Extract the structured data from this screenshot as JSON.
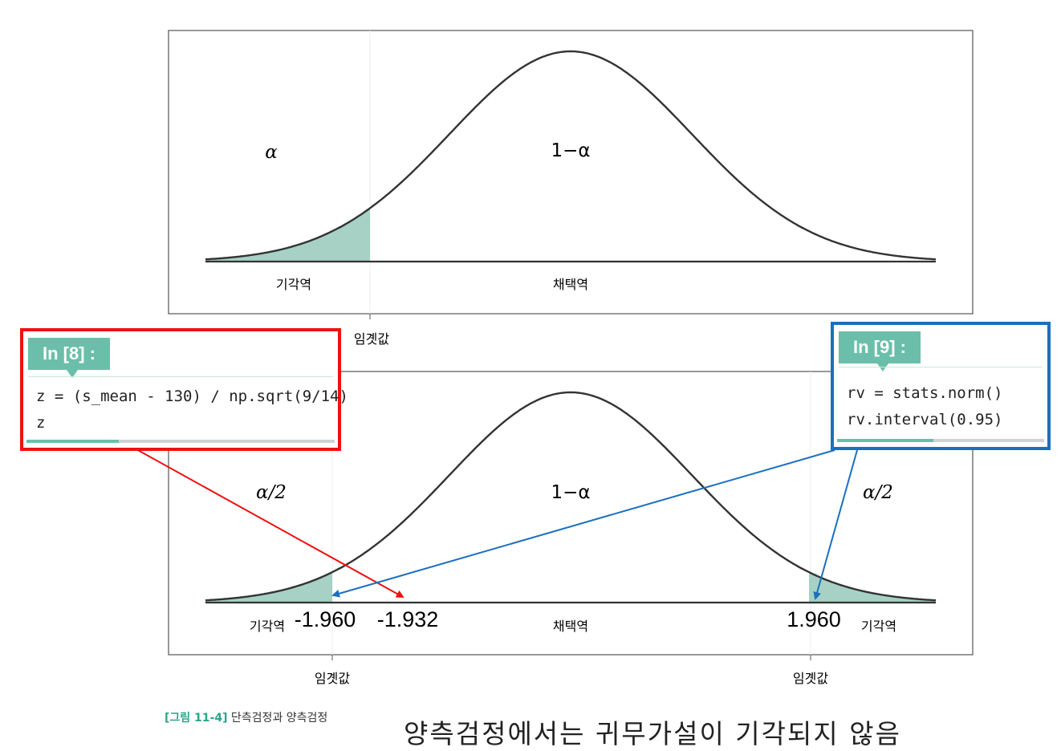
{
  "top_panel": {
    "alpha_label": "α",
    "one_minus_alpha_label": "1−α",
    "rejection_label": "기각역",
    "acceptance_label": "채택역",
    "critical_label": "임곗값"
  },
  "bottom_panel": {
    "alpha_half_left": "α/2",
    "one_minus_alpha_label": "1−α",
    "alpha_half_right": "α/2",
    "rejection_label_left": "기각역",
    "acceptance_label": "채택역",
    "rejection_label_right": "기각역",
    "critical_label_left": "임곗값",
    "critical_label_right": "임곗값",
    "value_left_critical": "-1.960",
    "value_z": "-1.932",
    "value_right_critical": "1.960"
  },
  "code_cell_8": {
    "tag": "In [8] :",
    "lines": [
      "z = (s_mean - 130) / np.sqrt(9/14)",
      "z"
    ]
  },
  "code_cell_9": {
    "tag": "In [9] :",
    "lines": [
      "rv = stats.norm()",
      "rv.interval(0.95)"
    ]
  },
  "caption": {
    "label": "[그림 11-4]",
    "text": " 단측검정과 양측검정"
  },
  "note": "양측검정에서는 귀무가설이 기각되지 않음",
  "colors": {
    "fill": "#a6d1c4",
    "curve": "#333333",
    "red": "#ee1111",
    "blue": "#1a70bf",
    "tag": "#6bbfaa"
  }
}
